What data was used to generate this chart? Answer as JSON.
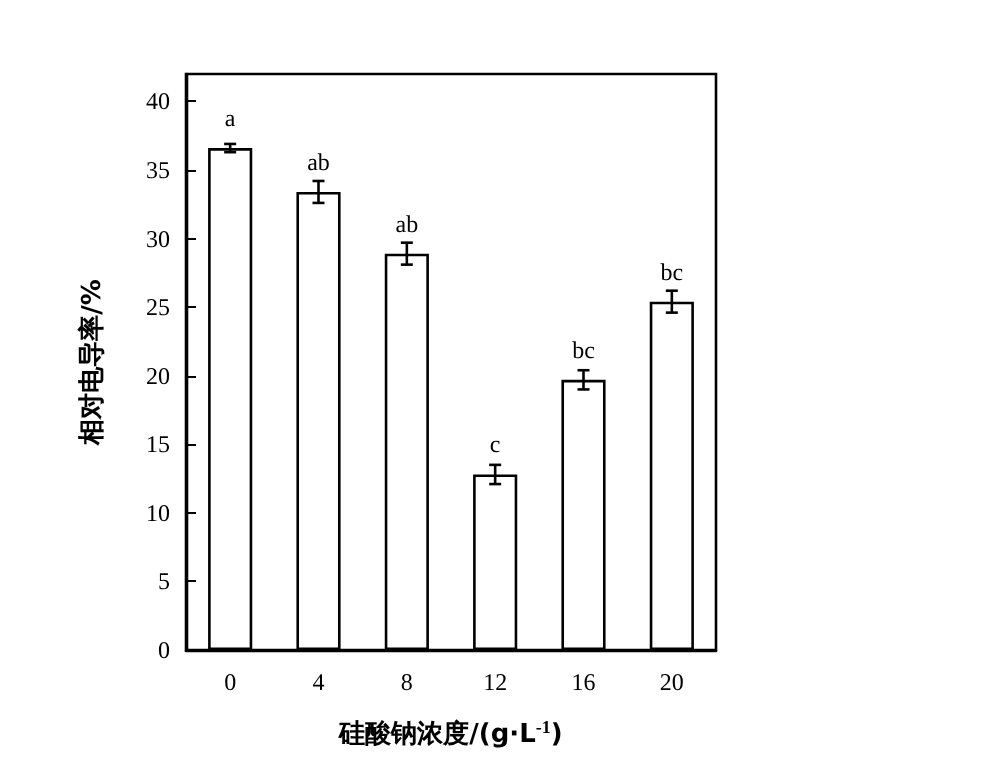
{
  "chart_data": {
    "type": "bar",
    "xlabel": "硅酸钠浓度/(g·L$^{-1}$)",
    "ylabel": "相对电导率/%",
    "categories": [
      "0",
      "4",
      "8",
      "12",
      "16",
      "20"
    ],
    "values": [
      36.6,
      33.4,
      28.9,
      12.8,
      19.7,
      25.4
    ],
    "errors": [
      0.3,
      0.8,
      0.8,
      0.7,
      0.7,
      0.8
    ],
    "value_labels": [
      "a",
      "ab",
      "ab",
      "c",
      "bc",
      "bc"
    ],
    "color": "#ffffff",
    "ylim": [
      0,
      42
    ],
    "yticks": [
      0,
      5,
      10,
      15,
      20,
      25,
      30,
      35,
      40
    ],
    "grid": false
  }
}
